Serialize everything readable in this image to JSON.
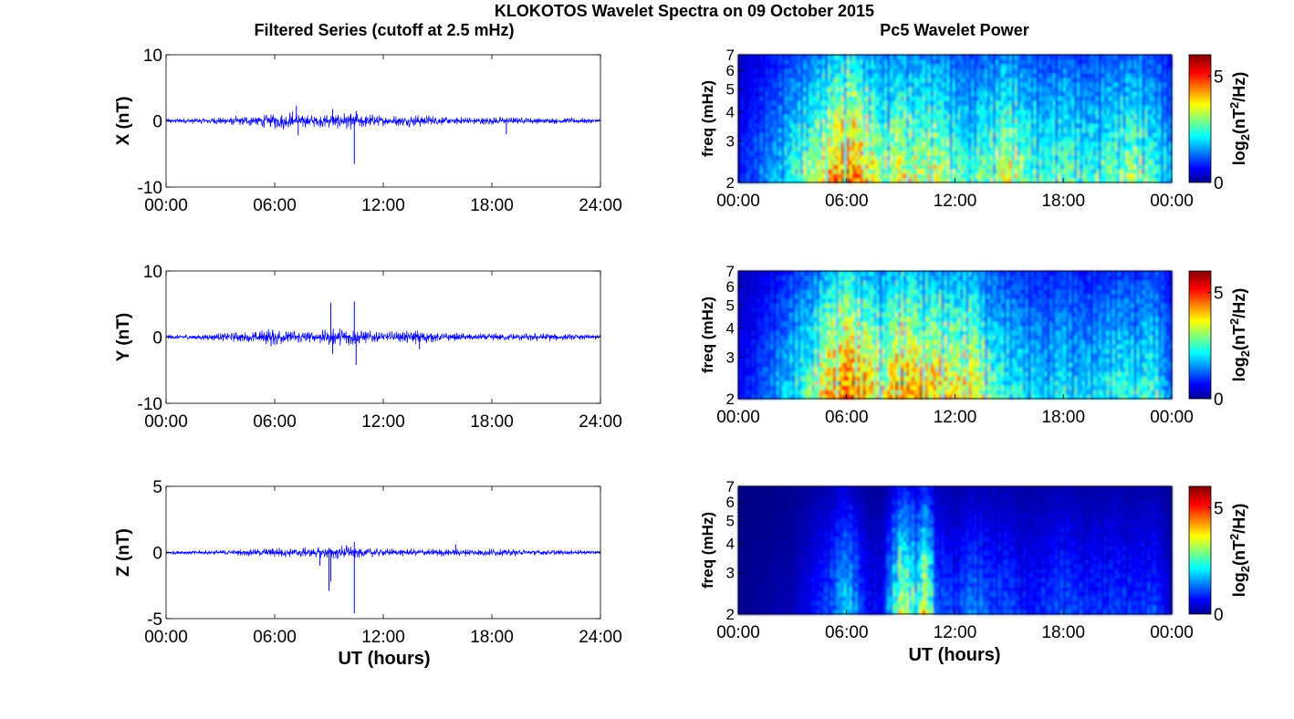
{
  "figure": {
    "title": "KLOKOTOS Wavelet Spectra on 09 October 2015",
    "left_title": "Filtered Series (cutoff at 2.5 mHz)",
    "right_title": "Pc5 Wavelet Power",
    "xlabel": "UT (hours)"
  },
  "chart_data": [
    {
      "type": "line",
      "component": "X",
      "ylabel": "X (nT)",
      "ylim": [
        -10,
        10
      ],
      "yticks": [
        "10",
        "0",
        "-10"
      ],
      "xlim": [
        0,
        24
      ],
      "xticks": [
        "00:00",
        "06:00",
        "12:00",
        "18:00",
        "24:00"
      ],
      "series_color": "#0000ff",
      "envelope": [
        [
          0,
          0.4
        ],
        [
          2,
          0.5
        ],
        [
          4,
          0.8
        ],
        [
          5,
          1.0
        ],
        [
          6,
          1.3
        ],
        [
          7,
          1.6
        ],
        [
          8,
          1.0
        ],
        [
          9,
          1.1
        ],
        [
          10,
          1.4
        ],
        [
          11,
          1.2
        ],
        [
          12,
          0.8
        ],
        [
          13,
          0.9
        ],
        [
          14,
          1.0
        ],
        [
          15,
          0.8
        ],
        [
          16,
          0.7
        ],
        [
          17,
          0.6
        ],
        [
          18,
          0.7
        ],
        [
          19,
          0.6
        ],
        [
          20,
          0.5
        ],
        [
          22,
          0.5
        ],
        [
          24,
          0.4
        ]
      ],
      "spikes": [
        {
          "x": 7.2,
          "y": 2.3
        },
        {
          "x": 7.3,
          "y": -2.2
        },
        {
          "x": 10.4,
          "y": -6.5
        },
        {
          "x": 10.5,
          "y": 1.5
        },
        {
          "x": 9.2,
          "y": 1.8
        },
        {
          "x": 18.8,
          "y": -2.0
        }
      ]
    },
    {
      "type": "line",
      "component": "Y",
      "ylabel": "Y (nT)",
      "ylim": [
        -10,
        10
      ],
      "yticks": [
        "10",
        "0",
        "-10"
      ],
      "xlim": [
        0,
        24
      ],
      "xticks": [
        "00:00",
        "06:00",
        "12:00",
        "18:00",
        "24:00"
      ],
      "series_color": "#0000ff",
      "envelope": [
        [
          0,
          0.4
        ],
        [
          2,
          0.5
        ],
        [
          4,
          0.8
        ],
        [
          5,
          1.0
        ],
        [
          5.8,
          1.5
        ],
        [
          6.5,
          1.3
        ],
        [
          8,
          1.0
        ],
        [
          9,
          1.3
        ],
        [
          10,
          1.5
        ],
        [
          11,
          1.1
        ],
        [
          12,
          0.8
        ],
        [
          14,
          1.2
        ],
        [
          15,
          0.7
        ],
        [
          17,
          0.6
        ],
        [
          19,
          0.6
        ],
        [
          21,
          0.7
        ],
        [
          22,
          0.5
        ],
        [
          24,
          0.4
        ]
      ],
      "spikes": [
        {
          "x": 9.1,
          "y": 5.2
        },
        {
          "x": 9.2,
          "y": -2.5
        },
        {
          "x": 10.4,
          "y": 5.4
        },
        {
          "x": 10.5,
          "y": -4.2
        },
        {
          "x": 14.0,
          "y": -1.8
        },
        {
          "x": 5.8,
          "y": -1.4
        }
      ]
    },
    {
      "type": "line",
      "component": "Z",
      "ylabel": "Z (nT)",
      "ylim": [
        -5,
        5
      ],
      "yticks": [
        "5",
        "0",
        "-5"
      ],
      "xlim": [
        0,
        24
      ],
      "xticks": [
        "00:00",
        "06:00",
        "12:00",
        "18:00",
        "24:00"
      ],
      "series_color": "#0000ff",
      "envelope": [
        [
          0,
          0.15
        ],
        [
          3,
          0.2
        ],
        [
          5,
          0.3
        ],
        [
          6,
          0.4
        ],
        [
          8,
          0.4
        ],
        [
          9,
          0.5
        ],
        [
          10,
          0.6
        ],
        [
          11,
          0.4
        ],
        [
          12,
          0.3
        ],
        [
          14,
          0.3
        ],
        [
          16,
          0.3
        ],
        [
          18,
          0.3
        ],
        [
          20,
          0.25
        ],
        [
          22,
          0.2
        ],
        [
          24,
          0.15
        ]
      ],
      "spikes": [
        {
          "x": 9.0,
          "y": -2.9
        },
        {
          "x": 9.1,
          "y": -2.2
        },
        {
          "x": 8.5,
          "y": -1.0
        },
        {
          "x": 10.4,
          "y": -4.6
        },
        {
          "x": 10.4,
          "y": 0.8
        },
        {
          "x": 16.0,
          "y": 0.6
        }
      ]
    },
    {
      "type": "heatmap",
      "component": "X",
      "ylabel": "freq (mHz)",
      "ylim": [
        2,
        7
      ],
      "yscale": "log",
      "yticks": [
        "7",
        "6",
        "5",
        "4",
        "3",
        "2"
      ],
      "xlim": [
        0,
        24
      ],
      "xticks": [
        "00:00",
        "06:00",
        "12:00",
        "18:00",
        "00:00"
      ],
      "colorbar": {
        "label_base": "log",
        "label_sub": "2",
        "label_unit_a": "(nT",
        "label_sup": "2",
        "label_unit_b": "/Hz)",
        "ticks": [
          "5",
          "0"
        ],
        "range": [
          0,
          6
        ]
      },
      "intensity": [
        [
          0,
          1.0
        ],
        [
          1,
          1.5
        ],
        [
          2,
          2.0
        ],
        [
          3,
          2.8
        ],
        [
          4,
          3.5
        ],
        [
          5,
          4.5
        ],
        [
          6,
          5.5
        ],
        [
          7,
          4.8
        ],
        [
          8,
          3.5
        ],
        [
          9,
          4.2
        ],
        [
          10,
          3.8
        ],
        [
          11,
          4.0
        ],
        [
          12,
          3.2
        ],
        [
          13,
          3.0
        ],
        [
          14,
          3.5
        ],
        [
          15,
          4.0
        ],
        [
          16,
          3.2
        ],
        [
          17,
          2.8
        ],
        [
          18,
          3.2
        ],
        [
          19,
          2.8
        ],
        [
          20,
          3.0
        ],
        [
          21,
          3.2
        ],
        [
          22,
          3.6
        ],
        [
          23,
          3.0
        ],
        [
          24,
          2.0
        ]
      ]
    },
    {
      "type": "heatmap",
      "component": "Y",
      "ylabel": "freq (mHz)",
      "ylim": [
        2,
        7
      ],
      "yscale": "log",
      "yticks": [
        "7",
        "6",
        "5",
        "4",
        "3",
        "2"
      ],
      "xlim": [
        0,
        24
      ],
      "xticks": [
        "00:00",
        "06:00",
        "12:00",
        "18:00",
        "00:00"
      ],
      "colorbar": {
        "label_base": "log",
        "label_sub": "2",
        "label_unit_a": "(nT",
        "label_sup": "2",
        "label_unit_b": "/Hz)",
        "ticks": [
          "5",
          "0"
        ],
        "range": [
          0,
          6
        ]
      },
      "intensity": [
        [
          0,
          0.8
        ],
        [
          1,
          1.2
        ],
        [
          2,
          1.8
        ],
        [
          3,
          2.5
        ],
        [
          4,
          3.2
        ],
        [
          5,
          4.8
        ],
        [
          6,
          5.6
        ],
        [
          7,
          5.0
        ],
        [
          8,
          4.0
        ],
        [
          9,
          5.2
        ],
        [
          10,
          4.8
        ],
        [
          11,
          4.6
        ],
        [
          12,
          4.2
        ],
        [
          13,
          4.5
        ],
        [
          14,
          3.2
        ],
        [
          15,
          2.8
        ],
        [
          16,
          2.5
        ],
        [
          17,
          2.2
        ],
        [
          18,
          2.6
        ],
        [
          19,
          2.2
        ],
        [
          20,
          2.4
        ],
        [
          21,
          2.8
        ],
        [
          22,
          2.6
        ],
        [
          23,
          3.0
        ],
        [
          24,
          1.5
        ]
      ]
    },
    {
      "type": "heatmap",
      "component": "Z",
      "ylabel": "freq (mHz)",
      "ylim": [
        2,
        7
      ],
      "yscale": "log",
      "yticks": [
        "7",
        "6",
        "5",
        "4",
        "3",
        "2"
      ],
      "xlim": [
        0,
        24
      ],
      "xticks": [
        "00:00",
        "06:00",
        "12:00",
        "18:00",
        "00:00"
      ],
      "colorbar": {
        "label_base": "log",
        "label_sub": "2",
        "label_unit_a": "(nT",
        "label_sup": "2",
        "label_unit_b": "/Hz)",
        "ticks": [
          "5",
          "0"
        ],
        "range": [
          0,
          6
        ]
      },
      "intensity": [
        [
          0,
          0.1
        ],
        [
          2,
          0.3
        ],
        [
          3,
          0.4
        ],
        [
          4,
          0.9
        ],
        [
          5,
          1.4
        ],
        [
          6,
          2.6
        ],
        [
          7,
          1.0
        ],
        [
          8,
          0.8
        ],
        [
          9,
          4.2
        ],
        [
          10,
          3.0
        ],
        [
          10.3,
          5.0
        ],
        [
          11,
          1.6
        ],
        [
          12,
          1.2
        ],
        [
          13,
          1.8
        ],
        [
          14,
          1.4
        ],
        [
          15,
          1.4
        ],
        [
          16,
          1.0
        ],
        [
          17,
          1.2
        ],
        [
          18,
          1.5
        ],
        [
          19,
          1.2
        ],
        [
          20,
          1.2
        ],
        [
          21,
          1.3
        ],
        [
          22,
          1.1
        ],
        [
          23,
          1.4
        ],
        [
          24,
          0.5
        ]
      ]
    }
  ]
}
